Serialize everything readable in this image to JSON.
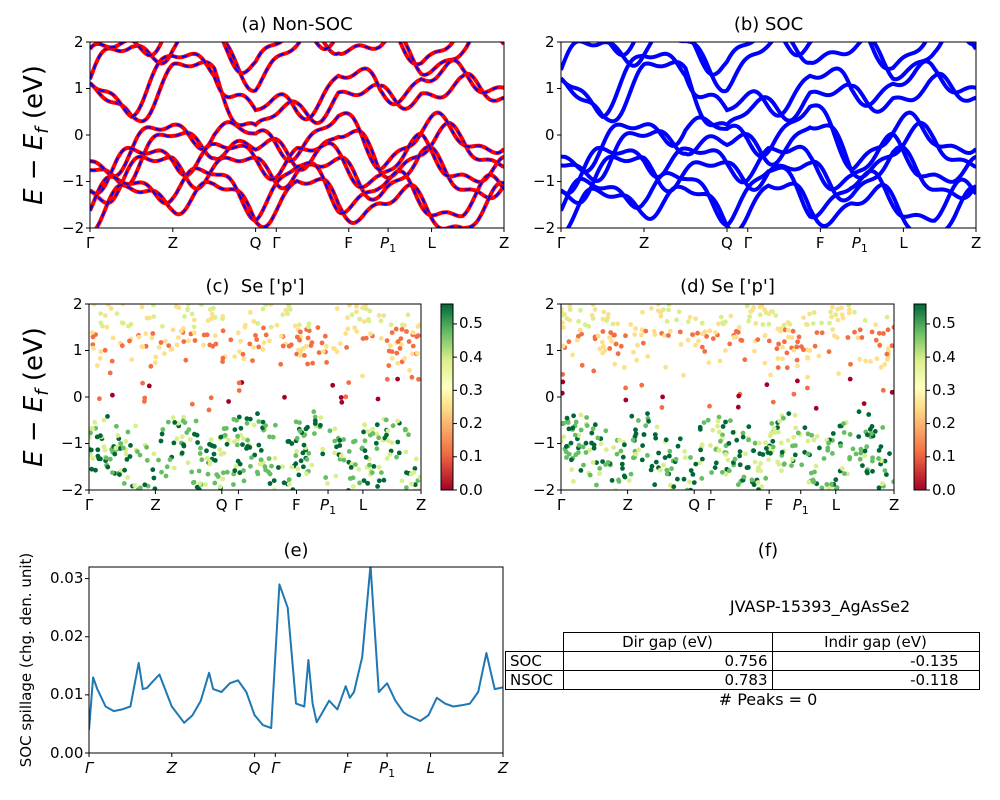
{
  "panels": {
    "a": {
      "title": "(a) Non-SOC"
    },
    "b": {
      "title": "(b) SOC"
    },
    "c": {
      "title": "(c)  Se ['p']"
    },
    "d": {
      "title": "(d) Se ['p']"
    },
    "e": {
      "title": "(e)"
    },
    "f": {
      "title": "(f)"
    }
  },
  "energy_axis": {
    "ylabel_main": "E − E",
    "ylabel_sub": "f",
    "ylabel_unit": " (eV)",
    "ticks": [
      "2",
      "1",
      "0",
      "−1",
      "−2"
    ]
  },
  "kpath": {
    "labels_ab": [
      "Γ",
      "Z",
      "Q",
      "Γ",
      "F",
      "P",
      "L",
      "Z"
    ],
    "p_subscript": "1"
  },
  "colorbar": {
    "ticks": [
      "0.5",
      "0.4",
      "0.3",
      "0.2",
      "0.1",
      "0.0"
    ],
    "colors": [
      "#a50026",
      "#f46d43",
      "#fee08b",
      "#d9ef8b",
      "#66bd63",
      "#006837"
    ],
    "range": [
      0.0,
      0.56
    ]
  },
  "spillage": {
    "ylabel": "SOC spillage (chg. den. unit)",
    "yticks": [
      "0.03",
      "0.02",
      "0.01",
      "0.00"
    ],
    "line_color": "#1f77b4"
  },
  "table": {
    "material": "JVASP-15393_AgAsSe2",
    "headers": [
      "Dir gap (eV)",
      "Indir gap (eV)"
    ],
    "rows": [
      {
        "label": "SOC",
        "dir": "0.756",
        "indir": "-0.135"
      },
      {
        "label": "NSOC",
        "dir": "0.783",
        "indir": "-0.118"
      }
    ],
    "peaks": "# Peaks = 0"
  },
  "chart_data": [
    {
      "type": "line",
      "title": "(a) Non-SOC",
      "ylabel": "E − E_f (eV)",
      "ylim": [
        -2,
        2
      ],
      "x_ticks": [
        "Γ",
        "Z",
        "Q",
        "Γ",
        "F",
        "P1",
        "L",
        "Z"
      ],
      "series_colors": [
        "#ff0000",
        "#0000ff"
      ],
      "bands": [
        [
          1.2,
          1.8,
          2.1,
          1.9,
          1.4,
          1.7,
          2.2,
          1.8,
          1.6,
          1.9,
          2.0
        ],
        [
          0.7,
          0.6,
          1.2,
          1.4,
          0.1,
          0.4,
          1.0,
          0.6,
          1.1,
          0.8,
          1.0
        ],
        [
          -0.8,
          -0.6,
          -0.2,
          0.0,
          -0.5,
          -0.3,
          -0.1,
          -0.6,
          -0.3,
          -0.2,
          -0.4
        ],
        [
          -1.1,
          -0.9,
          -0.6,
          -0.7,
          -0.8,
          -0.6,
          -0.9,
          -1.0,
          -0.7,
          -0.9,
          -1.2
        ],
        [
          -1.7,
          -1.4,
          -1.2,
          -1.3,
          -1.6,
          -1.1,
          -1.5,
          -1.4,
          -1.6,
          -1.8,
          -1.5
        ]
      ]
    },
    {
      "type": "line",
      "title": "(b) SOC",
      "ylabel": "",
      "ylim": [
        -2,
        2
      ],
      "x_ticks": [
        "Γ",
        "Z",
        "Q",
        "Γ",
        "F",
        "P1",
        "L",
        "Z"
      ],
      "series_colors": [
        "#0000ff"
      ],
      "bands": [
        [
          1.4,
          1.9,
          2.0,
          1.8,
          1.4,
          1.7,
          2.0,
          1.7,
          1.5,
          1.9,
          1.9
        ],
        [
          0.8,
          0.6,
          1.2,
          1.4,
          0.1,
          0.5,
          1.0,
          0.6,
          1.0,
          0.8,
          1.0
        ],
        [
          -0.7,
          -0.5,
          -0.2,
          0.1,
          -0.4,
          -0.2,
          0.1,
          -0.6,
          -0.3,
          -0.2,
          -0.4
        ],
        [
          -1.1,
          -0.9,
          -0.6,
          -0.8,
          -0.9,
          -0.6,
          -1.0,
          -1.0,
          -0.7,
          -0.9,
          -1.2
        ],
        [
          -1.7,
          -1.5,
          -1.3,
          -1.4,
          -1.7,
          -1.2,
          -1.6,
          -1.4,
          -1.6,
          -1.9,
          -1.6
        ]
      ]
    },
    {
      "type": "scatter",
      "title": "(c)  Se ['p']",
      "ylim": [
        -2,
        2
      ],
      "colorbar_range": [
        0.0,
        0.56
      ],
      "x_ticks": [
        "Γ",
        "Z",
        "Q",
        "Γ",
        "F",
        "P1",
        "L",
        "Z"
      ]
    },
    {
      "type": "scatter",
      "title": "(d) Se ['p']",
      "ylim": [
        -2,
        2
      ],
      "colorbar_range": [
        0.0,
        0.56
      ],
      "x_ticks": [
        "Γ",
        "Z",
        "Q",
        "Γ",
        "F",
        "P1",
        "L",
        "Z"
      ]
    },
    {
      "type": "line",
      "title": "(e)",
      "ylabel": "SOC spillage (chg. den. unit)",
      "ylim": [
        0.0,
        0.032
      ],
      "x_ticks": [
        "Γ",
        "Z",
        "Q",
        "Γ",
        "F",
        "P1",
        "L",
        "Z"
      ],
      "x": [
        0,
        0.01,
        0.02,
        0.04,
        0.06,
        0.08,
        0.1,
        0.12,
        0.13,
        0.14,
        0.15,
        0.17,
        0.2,
        0.23,
        0.25,
        0.27,
        0.29,
        0.3,
        0.32,
        0.34,
        0.36,
        0.38,
        0.4,
        0.42,
        0.44,
        0.46,
        0.48,
        0.5,
        0.52,
        0.53,
        0.54,
        0.55,
        0.56,
        0.58,
        0.6,
        0.62,
        0.63,
        0.64,
        0.66,
        0.68,
        0.7,
        0.72,
        0.74,
        0.76,
        0.77,
        0.78,
        0.8,
        0.82,
        0.84,
        0.86,
        0.88,
        0.9,
        0.92,
        0.94,
        0.96,
        0.98,
        1.0
      ],
      "y": [
        0.004,
        0.013,
        0.011,
        0.008,
        0.0072,
        0.0075,
        0.008,
        0.0155,
        0.011,
        0.0112,
        0.012,
        0.0135,
        0.008,
        0.0052,
        0.0065,
        0.009,
        0.0138,
        0.011,
        0.0105,
        0.012,
        0.0125,
        0.0105,
        0.0065,
        0.0048,
        0.0043,
        0.029,
        0.025,
        0.0085,
        0.008,
        0.016,
        0.0085,
        0.0053,
        0.0065,
        0.009,
        0.0075,
        0.0115,
        0.0095,
        0.0105,
        0.0165,
        0.0323,
        0.0105,
        0.012,
        0.009,
        0.007,
        0.0065,
        0.0062,
        0.0055,
        0.0065,
        0.0095,
        0.0085,
        0.008,
        0.0082,
        0.0085,
        0.0105,
        0.0172,
        0.011,
        0.0113
      ]
    },
    {
      "type": "table",
      "title": "(f)",
      "columns": [
        "",
        "Dir gap (eV)",
        "Indir gap (eV)"
      ],
      "rows": [
        [
          "SOC",
          "0.756",
          "-0.135"
        ],
        [
          "NSOC",
          "0.783",
          "-0.118"
        ]
      ]
    }
  ]
}
